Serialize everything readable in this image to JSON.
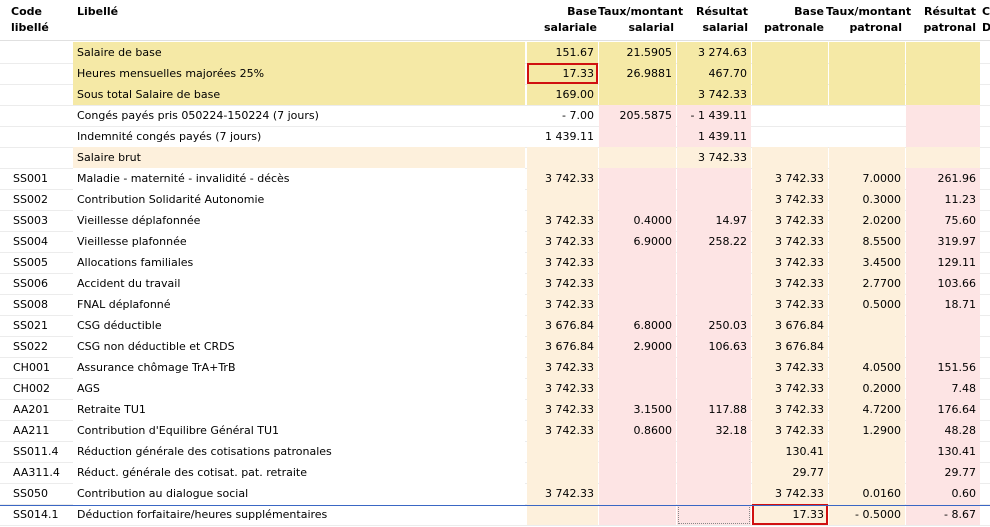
{
  "headers": {
    "code": "Code\nlibellé",
    "libelle": "Libellé",
    "base_sal": "Base\nsalariale",
    "taux_sal": "Taux/montant\nsalarial",
    "res_sal": "Résultat\nsalarial",
    "base_pat": "Base\npatronale",
    "taux_pat": "Taux/montant\npatronal",
    "res_pat": "Résultat\npatronal",
    "extra": "C\nD"
  },
  "rows": [
    {
      "code": "",
      "libelle": "Salaire de base",
      "base_sal": "151.67",
      "taux_sal": "21.5905",
      "res_sal": "3 274.63",
      "base_pat": "",
      "taux_pat": "",
      "res_pat": "",
      "style": "yellow"
    },
    {
      "code": "",
      "libelle": "Heures mensuelles majorées 25%",
      "base_sal": "17.33",
      "taux_sal": "26.9881",
      "res_sal": "467.70",
      "base_pat": "",
      "taux_pat": "",
      "res_pat": "",
      "style": "yellow"
    },
    {
      "code": "",
      "libelle": "Sous total Salaire de base",
      "base_sal": "169.00",
      "taux_sal": "",
      "res_sal": "3 742.33",
      "base_pat": "",
      "taux_pat": "",
      "res_pat": "",
      "style": "yellow"
    },
    {
      "code": "",
      "libelle": "Congés payés pris 050224-150224 (7 jours)",
      "base_sal": "- 7.00",
      "taux_sal": "205.5875",
      "res_sal": "- 1 439.11",
      "base_pat": "",
      "taux_pat": "",
      "res_pat": "",
      "style": "white"
    },
    {
      "code": "",
      "libelle": "Indemnité congés payés (7 jours)",
      "base_sal": "1 439.11",
      "taux_sal": "",
      "res_sal": "1 439.11",
      "base_pat": "",
      "taux_pat": "",
      "res_pat": "",
      "style": "white"
    },
    {
      "code": "",
      "libelle": "Salaire brut",
      "base_sal": "",
      "taux_sal": "",
      "res_sal": "3 742.33",
      "base_pat": "",
      "taux_pat": "",
      "res_pat": "",
      "style": "peach"
    },
    {
      "code": "SS001",
      "libelle": "Maladie - maternité - invalidité - décès",
      "base_sal": "3 742.33",
      "taux_sal": "",
      "res_sal": "",
      "base_pat": "3 742.33",
      "taux_pat": "7.0000",
      "res_pat": "261.96",
      "style": "cot"
    },
    {
      "code": "SS002",
      "libelle": "Contribution Solidarité Autonomie",
      "base_sal": "",
      "taux_sal": "",
      "res_sal": "",
      "base_pat": "3 742.33",
      "taux_pat": "0.3000",
      "res_pat": "11.23",
      "style": "cot"
    },
    {
      "code": "SS003",
      "libelle": "Vieillesse déplafonnée",
      "base_sal": "3 742.33",
      "taux_sal": "0.4000",
      "res_sal": "14.97",
      "base_pat": "3 742.33",
      "taux_pat": "2.0200",
      "res_pat": "75.60",
      "style": "cot"
    },
    {
      "code": "SS004",
      "libelle": "Vieillesse plafonnée",
      "base_sal": "3 742.33",
      "taux_sal": "6.9000",
      "res_sal": "258.22",
      "base_pat": "3 742.33",
      "taux_pat": "8.5500",
      "res_pat": "319.97",
      "style": "cot"
    },
    {
      "code": "SS005",
      "libelle": "Allocations familiales",
      "base_sal": "3 742.33",
      "taux_sal": "",
      "res_sal": "",
      "base_pat": "3 742.33",
      "taux_pat": "3.4500",
      "res_pat": "129.11",
      "style": "cot"
    },
    {
      "code": "SS006",
      "libelle": "Accident du travail",
      "base_sal": "3 742.33",
      "taux_sal": "",
      "res_sal": "",
      "base_pat": "3 742.33",
      "taux_pat": "2.7700",
      "res_pat": "103.66",
      "style": "cot"
    },
    {
      "code": "SS008",
      "libelle": "FNAL déplafonné",
      "base_sal": "3 742.33",
      "taux_sal": "",
      "res_sal": "",
      "base_pat": "3 742.33",
      "taux_pat": "0.5000",
      "res_pat": "18.71",
      "style": "cot"
    },
    {
      "code": "SS021",
      "libelle": "CSG déductible",
      "base_sal": "3 676.84",
      "taux_sal": "6.8000",
      "res_sal": "250.03",
      "base_pat": "3 676.84",
      "taux_pat": "",
      "res_pat": "",
      "style": "cot"
    },
    {
      "code": "SS022",
      "libelle": "CSG non déductible et CRDS",
      "base_sal": "3 676.84",
      "taux_sal": "2.9000",
      "res_sal": "106.63",
      "base_pat": "3 676.84",
      "taux_pat": "",
      "res_pat": "",
      "style": "cot"
    },
    {
      "code": "CH001",
      "libelle": "Assurance chômage TrA+TrB",
      "base_sal": "3 742.33",
      "taux_sal": "",
      "res_sal": "",
      "base_pat": "3 742.33",
      "taux_pat": "4.0500",
      "res_pat": "151.56",
      "style": "cot"
    },
    {
      "code": "CH002",
      "libelle": "AGS",
      "base_sal": "3 742.33",
      "taux_sal": "",
      "res_sal": "",
      "base_pat": "3 742.33",
      "taux_pat": "0.2000",
      "res_pat": "7.48",
      "style": "cot"
    },
    {
      "code": "AA201",
      "libelle": "Retraite TU1",
      "base_sal": "3 742.33",
      "taux_sal": "3.1500",
      "res_sal": "117.88",
      "base_pat": "3 742.33",
      "taux_pat": "4.7200",
      "res_pat": "176.64",
      "style": "cot"
    },
    {
      "code": "AA211",
      "libelle": "Contribution d'Equilibre Général TU1",
      "base_sal": "3 742.33",
      "taux_sal": "0.8600",
      "res_sal": "32.18",
      "base_pat": "3 742.33",
      "taux_pat": "1.2900",
      "res_pat": "48.28",
      "style": "cot"
    },
    {
      "code": "SS011.4",
      "libelle": "Réduction générale des cotisations patronales",
      "base_sal": "",
      "taux_sal": "",
      "res_sal": "",
      "base_pat": "130.41",
      "taux_pat": "",
      "res_pat": "130.41",
      "style": "cot"
    },
    {
      "code": "AA311.4",
      "libelle": "Réduct. générale des cotisat. pat. retraite",
      "base_sal": "",
      "taux_sal": "",
      "res_sal": "",
      "base_pat": "29.77",
      "taux_pat": "",
      "res_pat": "29.77",
      "style": "cot"
    },
    {
      "code": "SS050",
      "libelle": "Contribution au dialogue social",
      "base_sal": "3 742.33",
      "taux_sal": "",
      "res_sal": "",
      "base_pat": "3 742.33",
      "taux_pat": "0.0160",
      "res_pat": "0.60",
      "style": "cot"
    },
    {
      "code": "SS014.1",
      "libelle": "Déduction forfaitaire/heures supplémentaires",
      "base_sal": "",
      "taux_sal": "",
      "res_sal": "",
      "base_pat": "17.33",
      "taux_pat": "- 0.5000",
      "res_pat": "- 8.67",
      "style": "cot"
    }
  ],
  "colors": {
    "yellow": "#f5e9a6",
    "peach": "#fdf0dc",
    "pink": "#fde4e4",
    "highlight_box": "#d01010",
    "selection_line": "#3a67c4"
  }
}
